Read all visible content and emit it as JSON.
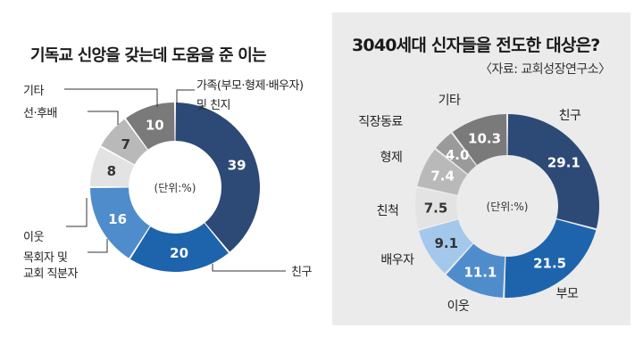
{
  "colors": {
    "dark_navy": "#2d4a76",
    "blue": "#1d64ad",
    "mid_blue": "#4f8ccb",
    "light_blue": "#a4c8ec",
    "very_light_gray": "#e3e3e3",
    "light_gray": "#b9b9b9",
    "mid_gray": "#9a9a9a",
    "dark_gray": "#7a7a7a",
    "right_panel_bg": "#ebebeb"
  },
  "chart_data": [
    {
      "type": "pie",
      "donut": true,
      "title": "기독교 신앙을 갖는데 도움을 준 이는",
      "center_label": "(단위:%)",
      "categories": [
        "가족(부모·형제·배우자) 및 친지",
        "친구",
        "목회자 및 교회 직분자",
        "이웃",
        "선·후배",
        "기타"
      ],
      "category_lines": [
        [
          "가족(부모·형제·배우자)",
          "및 친지"
        ],
        [
          "친구"
        ],
        [
          "목회자 및",
          "교회 직분자"
        ],
        [
          "이웃"
        ],
        [
          "선·후배"
        ],
        [
          "기타"
        ]
      ],
      "values": [
        39,
        20,
        16,
        8,
        7,
        10
      ],
      "value_labels": [
        "39",
        "20",
        "16",
        "8",
        "7",
        "10"
      ],
      "colors": [
        "#2d4a76",
        "#1d64ad",
        "#4f8ccb",
        "#e3e3e3",
        "#b9b9b9",
        "#7a7a7a"
      ],
      "value_text_colors": [
        "#ffffff",
        "#ffffff",
        "#ffffff",
        "#333333",
        "#333333",
        "#ffffff"
      ]
    },
    {
      "type": "pie",
      "donut": true,
      "title": "3040세대 신자들을 전도한 대상은?",
      "source": "〈자료: 교회성장연구소〉",
      "center_label": "(단위:%)",
      "categories": [
        "친구",
        "부모",
        "이웃",
        "배우자",
        "친척",
        "형제",
        "직장동료",
        "기타"
      ],
      "values": [
        29.1,
        21.5,
        11.1,
        9.1,
        7.5,
        7.4,
        4.0,
        10.3
      ],
      "value_labels": [
        "29.1",
        "21.5",
        "11.1",
        "9.1",
        "7.5",
        "7.4",
        "4.0",
        "10.3"
      ],
      "colors": [
        "#2d4a76",
        "#1d64ad",
        "#4f8ccb",
        "#a4c8ec",
        "#e3e3e3",
        "#b9b9b9",
        "#9a9a9a",
        "#7a7a7a"
      ],
      "value_text_colors": [
        "#ffffff",
        "#ffffff",
        "#ffffff",
        "#333333",
        "#333333",
        "#ffffff",
        "#ffffff",
        "#ffffff"
      ]
    }
  ]
}
